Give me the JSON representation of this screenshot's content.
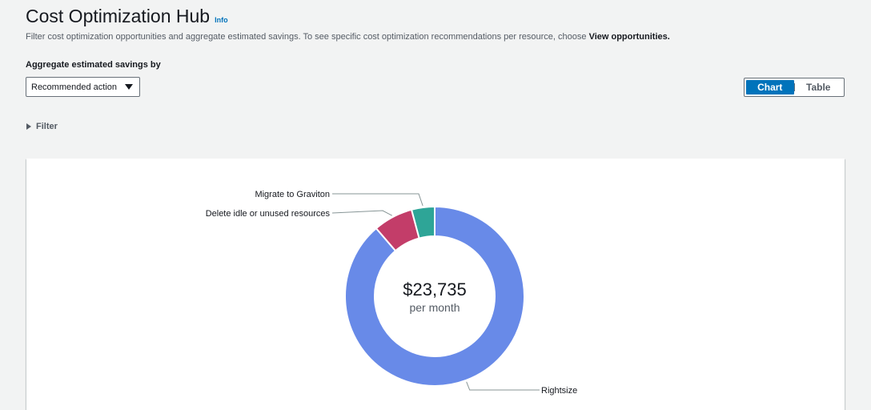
{
  "header": {
    "title": "Cost Optimization Hub",
    "info_link": "Info",
    "description_prefix": "Filter cost optimization opportunities and aggregate estimated savings. To see specific cost optimization recommendations per resource, choose ",
    "description_link": "View opportunities."
  },
  "aggregate": {
    "label": "Aggregate estimated savings by",
    "selected": "Recommended action"
  },
  "view_toggle": {
    "chart_label": "Chart",
    "table_label": "Table",
    "active": "chart"
  },
  "filter": {
    "label": "Filter",
    "icon": "caret-right-icon"
  },
  "colors": {
    "accent": "#0073bb",
    "rightsize": "#688ae8",
    "delete_idle": "#c33d69",
    "graviton": "#2ea597"
  },
  "chart_data": {
    "type": "pie",
    "variant": "donut",
    "center_value": "$23,735",
    "center_unit": "per month",
    "segments": [
      {
        "label": "Rightsize",
        "share": 0.8868,
        "color": "#688ae8"
      },
      {
        "label": "Delete idle or unused resources",
        "share": 0.0716,
        "color": "#c33d69"
      },
      {
        "label": "Migrate to Graviton",
        "share": 0.0416,
        "color": "#2ea597"
      }
    ]
  }
}
